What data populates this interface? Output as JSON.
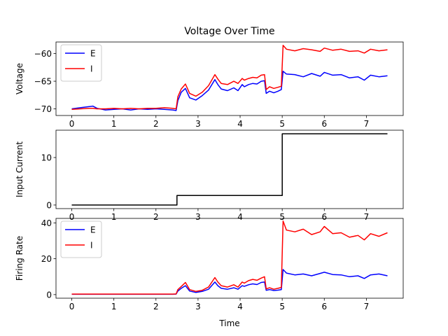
{
  "chart_data": [
    {
      "type": "line",
      "title": "Voltage Over Time",
      "xlabel": "",
      "ylabel": "Voltage",
      "xlim": [
        -0.375,
        7.875
      ],
      "ylim": [
        -71.2,
        -57.9
      ],
      "xticks": [
        0,
        1,
        2,
        3,
        4,
        5,
        6,
        7
      ],
      "xtick_labels": [
        "0",
        "1",
        "2",
        "3",
        "4",
        "5",
        "6",
        "7"
      ],
      "yticks": [
        -70,
        -65,
        -60
      ],
      "ytick_labels": [
        "−70",
        "−65",
        "−60"
      ],
      "grid": false,
      "legend": "upper-left",
      "series": [
        {
          "name": "E",
          "color": "#0000ff",
          "x": [
            0,
            0.2,
            0.4,
            0.5,
            0.6,
            0.8,
            1.0,
            1.2,
            1.4,
            1.6,
            1.8,
            2.0,
            2.2,
            2.4,
            2.48,
            2.52,
            2.6,
            2.7,
            2.8,
            2.95,
            3.1,
            3.25,
            3.4,
            3.47,
            3.55,
            3.7,
            3.85,
            3.95,
            4.05,
            4.1,
            4.2,
            4.3,
            4.4,
            4.5,
            4.58,
            4.62,
            4.7,
            4.8,
            4.9,
            4.98,
            5.02,
            5.1,
            5.3,
            5.5,
            5.7,
            5.9,
            6.0,
            6.2,
            6.4,
            6.6,
            6.8,
            6.95,
            7.1,
            7.3,
            7.5
          ],
          "y": [
            -70.0,
            -69.8,
            -69.6,
            -69.5,
            -69.9,
            -70.2,
            -70.1,
            -70.0,
            -70.2,
            -70.0,
            -70.1,
            -70.0,
            -70.1,
            -70.2,
            -70.3,
            -68.5,
            -67.0,
            -66.3,
            -68.0,
            -68.4,
            -67.6,
            -66.6,
            -64.7,
            -65.6,
            -66.4,
            -66.7,
            -66.2,
            -66.7,
            -65.6,
            -66.0,
            -65.6,
            -65.4,
            -65.5,
            -65.0,
            -64.9,
            -67.2,
            -66.8,
            -67.1,
            -66.8,
            -66.5,
            -63.2,
            -63.7,
            -63.8,
            -64.2,
            -63.6,
            -64.1,
            -63.4,
            -63.9,
            -63.8,
            -64.4,
            -64.2,
            -64.8,
            -63.9,
            -64.2,
            -64.0
          ]
        },
        {
          "name": "I",
          "color": "#ff0000",
          "x": [
            0,
            0.2,
            0.4,
            0.5,
            0.6,
            0.8,
            1.0,
            1.2,
            1.4,
            1.6,
            1.8,
            2.0,
            2.2,
            2.4,
            2.48,
            2.52,
            2.6,
            2.7,
            2.8,
            2.95,
            3.1,
            3.25,
            3.4,
            3.47,
            3.55,
            3.7,
            3.85,
            3.95,
            4.05,
            4.1,
            4.2,
            4.3,
            4.4,
            4.5,
            4.58,
            4.62,
            4.7,
            4.8,
            4.9,
            4.98,
            5.02,
            5.1,
            5.3,
            5.5,
            5.7,
            5.9,
            6.0,
            6.2,
            6.4,
            6.6,
            6.8,
            6.95,
            7.1,
            7.3,
            7.5
          ],
          "y": [
            -70.1,
            -70.0,
            -69.9,
            -69.9,
            -70.0,
            -70.0,
            -69.9,
            -70.0,
            -69.9,
            -70.0,
            -69.9,
            -69.9,
            -69.8,
            -69.9,
            -70.0,
            -67.8,
            -66.4,
            -65.5,
            -67.2,
            -67.7,
            -67.0,
            -65.8,
            -63.8,
            -64.6,
            -65.4,
            -65.6,
            -65.0,
            -65.4,
            -64.5,
            -64.8,
            -64.5,
            -64.3,
            -64.4,
            -63.9,
            -63.8,
            -66.5,
            -66.0,
            -66.3,
            -66.1,
            -65.9,
            -58.5,
            -59.2,
            -59.5,
            -59.1,
            -59.3,
            -59.6,
            -59.0,
            -59.4,
            -59.2,
            -59.6,
            -59.5,
            -59.9,
            -59.2,
            -59.5,
            -59.3
          ]
        }
      ]
    },
    {
      "type": "line",
      "title": "",
      "xlabel": "",
      "ylabel": "Input Current",
      "xlim": [
        -0.375,
        7.875
      ],
      "ylim": [
        -0.75,
        15.75
      ],
      "xticks": [
        0,
        1,
        2,
        3,
        4,
        5,
        6,
        7
      ],
      "xtick_labels": [
        "0",
        "1",
        "2",
        "3",
        "4",
        "5",
        "6",
        "7"
      ],
      "yticks": [
        0,
        10
      ],
      "ytick_labels": [
        "0",
        "10"
      ],
      "grid": false,
      "legend": "none",
      "series": [
        {
          "color": "#000000",
          "x": [
            0,
            2.5,
            2.5,
            5.0,
            5.0,
            7.5
          ],
          "y": [
            0,
            0,
            2,
            2,
            15,
            15
          ]
        }
      ]
    },
    {
      "type": "line",
      "title": "",
      "xlabel": "Time",
      "ylabel": "Firing Rate",
      "xlim": [
        -0.375,
        7.875
      ],
      "ylim": [
        -2.0,
        42.5
      ],
      "xticks": [
        0,
        1,
        2,
        3,
        4,
        5,
        6,
        7
      ],
      "xtick_labels": [
        "0",
        "1",
        "2",
        "3",
        "4",
        "5",
        "6",
        "7"
      ],
      "yticks": [
        0,
        20,
        40
      ],
      "ytick_labels": [
        "0",
        "20",
        "40"
      ],
      "grid": false,
      "legend": "upper-left",
      "series": [
        {
          "name": "E",
          "color": "#0000ff",
          "x": [
            0,
            0.5,
            1.0,
            1.5,
            2.0,
            2.4,
            2.48,
            2.52,
            2.6,
            2.7,
            2.8,
            2.95,
            3.1,
            3.25,
            3.4,
            3.47,
            3.55,
            3.7,
            3.85,
            3.95,
            4.05,
            4.1,
            4.2,
            4.3,
            4.4,
            4.5,
            4.58,
            4.62,
            4.7,
            4.8,
            4.9,
            4.98,
            5.02,
            5.1,
            5.3,
            5.5,
            5.7,
            5.9,
            6.0,
            6.2,
            6.4,
            6.6,
            6.8,
            6.95,
            7.1,
            7.3,
            7.5
          ],
          "y": [
            0.2,
            0.2,
            0.2,
            0.2,
            0.2,
            0.2,
            0.3,
            2.0,
            3.5,
            5.0,
            2.0,
            1.2,
            1.8,
            3.0,
            7.0,
            5.0,
            3.5,
            3.0,
            3.8,
            3.0,
            5.0,
            4.6,
            5.5,
            6.0,
            5.6,
            6.8,
            7.0,
            2.4,
            2.8,
            2.3,
            2.5,
            2.8,
            14.0,
            12.0,
            11.0,
            11.5,
            10.5,
            11.8,
            12.5,
            11.2,
            11.0,
            10.0,
            10.5,
            9.0,
            11.0,
            11.5,
            10.5
          ]
        },
        {
          "name": "I",
          "color": "#ff0000",
          "x": [
            0,
            0.5,
            1.0,
            1.5,
            2.0,
            2.4,
            2.48,
            2.52,
            2.6,
            2.7,
            2.8,
            2.95,
            3.1,
            3.25,
            3.4,
            3.47,
            3.55,
            3.7,
            3.85,
            3.95,
            4.05,
            4.1,
            4.2,
            4.3,
            4.4,
            4.5,
            4.58,
            4.62,
            4.7,
            4.8,
            4.9,
            4.98,
            5.02,
            5.1,
            5.3,
            5.5,
            5.7,
            5.9,
            6.0,
            6.2,
            6.4,
            6.6,
            6.8,
            6.95,
            7.1,
            7.3,
            7.5
          ],
          "y": [
            0.3,
            0.3,
            0.3,
            0.3,
            0.3,
            0.3,
            0.4,
            2.8,
            4.5,
            6.8,
            2.8,
            1.8,
            2.4,
            4.2,
            9.5,
            7.0,
            5.0,
            4.2,
            5.5,
            4.2,
            7.0,
            6.4,
            7.8,
            8.5,
            8.0,
            9.2,
            10.0,
            3.2,
            3.8,
            3.0,
            3.5,
            4.0,
            41.0,
            36.0,
            35.0,
            36.5,
            33.5,
            35.0,
            38.0,
            34.0,
            34.5,
            32.0,
            33.0,
            30.5,
            34.0,
            32.5,
            34.5
          ]
        }
      ]
    }
  ]
}
